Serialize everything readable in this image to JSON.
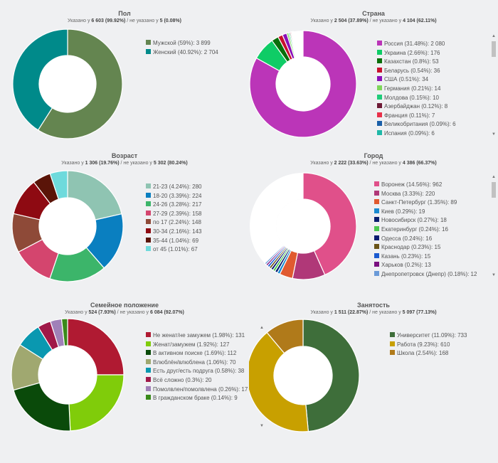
{
  "chart_data": [
    {
      "type": "pie",
      "donut": true,
      "title": "Пол",
      "specified": "6 603 (99.92%)",
      "unspecified": "5 (0.08%)",
      "total": 6603,
      "labels": [
        "Мужской (59%): 3 899",
        "Женский (40.92%): 2 704"
      ],
      "values": [
        3899,
        2704
      ],
      "colors": [
        "#648550",
        "#008a8a"
      ],
      "scroll": false
    },
    {
      "type": "pie",
      "donut": true,
      "title": "Страна",
      "specified": "2 504 (37.89%)",
      "unspecified": "4 104 (62.11%)",
      "total": 2504,
      "labels": [
        "Россия (31.48%): 2 080",
        "Украина (2.66%): 176",
        "Казахстан (0.8%): 53",
        "Беларусь (0.54%): 36",
        "США (0.51%): 34",
        "Германия (0.21%): 14",
        "Молдова (0.15%): 10",
        "Азербайджан (0.12%): 8",
        "Франция (0.11%): 7",
        "Великобритания (0.09%): 6",
        "Испания (0.09%): 6"
      ],
      "values": [
        2080,
        176,
        53,
        36,
        34,
        14,
        10,
        8,
        7,
        6,
        6
      ],
      "colors": [
        "#bb35b8",
        "#0fcc66",
        "#0a6e0a",
        "#c8102e",
        "#8a10b8",
        "#7fd65c",
        "#1fcc7a",
        "#6d1a36",
        "#e8304a",
        "#1a5fa8",
        "#1fb8a8"
      ],
      "scroll": true
    },
    {
      "type": "pie",
      "donut": true,
      "title": "Возраст",
      "specified": "1 306 (19.76%)",
      "unspecified": "5 302 (80.24%)",
      "total": 1306,
      "labels": [
        "21-23 (4.24%): 280",
        "18-20 (3.39%): 224",
        "24-26 (3.28%): 217",
        "27-29 (2.39%): 158",
        "по 17 (2.24%): 148",
        "30-34 (2.16%): 143",
        "35-44 (1.04%): 69",
        "от 45 (1.01%): 67"
      ],
      "values": [
        280,
        224,
        217,
        158,
        148,
        143,
        69,
        67
      ],
      "colors": [
        "#8fc4b2",
        "#0a7fc0",
        "#3cb56a",
        "#d4456e",
        "#8e4a38",
        "#8e0a12",
        "#5a1408",
        "#6edadc"
      ],
      "scroll": false
    },
    {
      "type": "pie",
      "donut": true,
      "title": "Город",
      "specified": "2 222 (33.63%)",
      "unspecified": "4 386 (66.37%)",
      "total": 2222,
      "labels": [
        "Воронеж (14.56%): 962",
        "Москва (3.33%): 220",
        "Санкт-Петербург (1.35%): 89",
        "Киев (0.29%): 19",
        "Новосибирск (0.27%): 18",
        "Екатеринбург (0.24%): 16",
        "Одесса (0.24%): 16",
        "Краснодар (0.23%): 15",
        "Казань (0.23%): 15",
        "Харьков (0.2%): 13",
        "Днепропетровск (Днепр) (0.18%): 12"
      ],
      "values": [
        962,
        220,
        89,
        19,
        18,
        16,
        16,
        15,
        15,
        13,
        12
      ],
      "colors": [
        "#e0508a",
        "#b03878",
        "#e05a30",
        "#1a8ad0",
        "#0a1e6e",
        "#4cc850",
        "#0a1a70",
        "#6a5418",
        "#1a5ad0",
        "#7a1080",
        "#6a9ad8"
      ],
      "scroll": true
    },
    {
      "type": "pie",
      "donut": true,
      "title": "Семейное положение",
      "specified": "524 (7.93%)",
      "unspecified": "6 084 (92.07%)",
      "total": 524,
      "labels": [
        "Не женат/не замужем (1.98%): 131",
        "Женат/замужем (1.92%): 127",
        "В активном поиске (1.69%): 112",
        "Влюблён/влюблена (1.06%): 70",
        "Есть друг/есть подруга (0.58%): 38",
        "Всё сложно (0.3%): 20",
        "Помолвлен/помолвлена (0.26%): 17",
        "В гражданском браке (0.14%): 9"
      ],
      "values": [
        131,
        127,
        112,
        70,
        38,
        20,
        17,
        9
      ],
      "colors": [
        "#b01a32",
        "#80cc0a",
        "#0a4a0a",
        "#a0a870",
        "#0a98b0",
        "#a01848",
        "#a080b8",
        "#3a8a1a"
      ],
      "scroll": true
    },
    {
      "type": "pie",
      "donut": true,
      "title": "Занятость",
      "specified": "1 511 (22.87%)",
      "unspecified": "5 097 (77.13%)",
      "total": 1511,
      "labels": [
        "Университет (11.09%): 733",
        "Работа (9.23%): 610",
        "Школа (2.54%): 168"
      ],
      "values": [
        733,
        610,
        168
      ],
      "colors": [
        "#3e6e3a",
        "#c8a000",
        "#b07a1a"
      ],
      "scroll": false
    }
  ],
  "labels": {
    "specified_prefix": "Указано у ",
    "unspecified_prefix": " / не указано у "
  }
}
